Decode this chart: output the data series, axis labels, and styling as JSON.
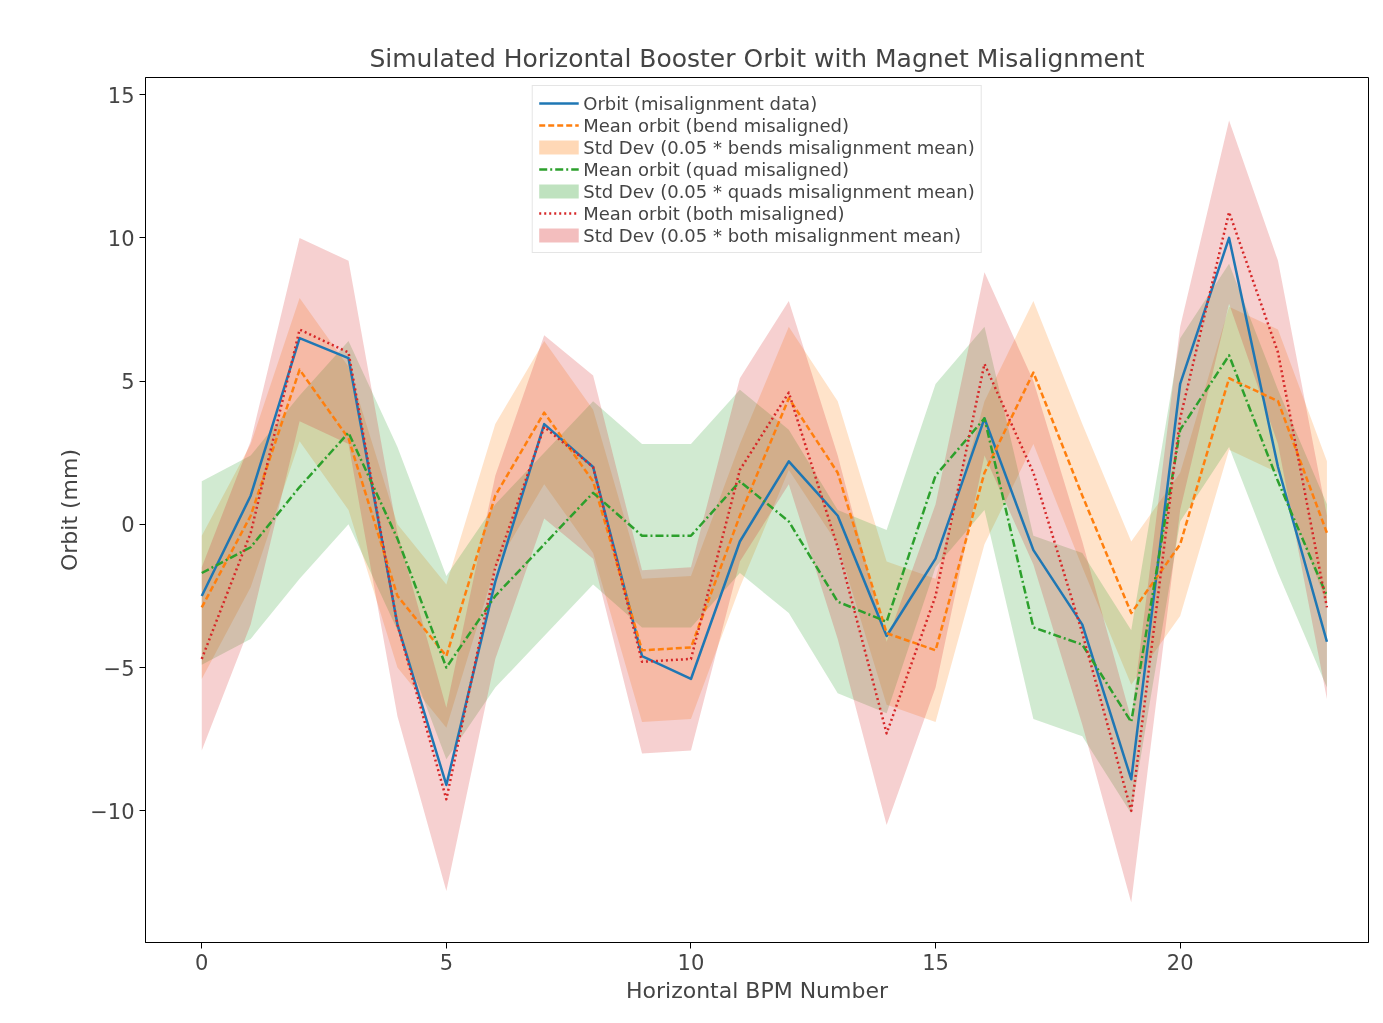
{
  "chart_data": {
    "type": "line",
    "title": "Simulated Horizontal Booster Orbit with Magnet Misalignment",
    "xlabel": "Horizontal BPM Number",
    "ylabel": "Orbit (mm)",
    "x": [
      0,
      1,
      2,
      3,
      4,
      5,
      6,
      7,
      8,
      9,
      10,
      11,
      12,
      13,
      14,
      15,
      16,
      17,
      18,
      19,
      20,
      21,
      22,
      23
    ],
    "series": [
      {
        "name": "Orbit (misalignment data)",
        "color": "#1f77b4",
        "line_style": "solid",
        "values": [
          -2.5,
          1.0,
          6.5,
          5.8,
          -3.5,
          -9.1,
          -2.0,
          3.5,
          2.0,
          -4.6,
          -5.4,
          -0.6,
          2.2,
          0.3,
          -3.9,
          -1.2,
          3.7,
          -0.9,
          -3.5,
          -8.9,
          4.9,
          10.0,
          2.0,
          -4.1
        ]
      },
      {
        "name": "Mean orbit (bend misaligned)",
        "color": "#ff7f0e",
        "line_style": "dashed",
        "values": [
          -2.9,
          0.3,
          5.4,
          3.0,
          -2.5,
          -4.6,
          1.0,
          3.9,
          1.5,
          -4.4,
          -4.3,
          0.3,
          4.4,
          1.8,
          -3.8,
          -4.4,
          1.8,
          5.3,
          1.0,
          -3.1,
          -0.7,
          5.1,
          4.3,
          -0.3
        ],
        "lower": [
          -5.4,
          -2.2,
          2.9,
          0.5,
          -5.0,
          -7.1,
          -1.5,
          1.4,
          -1.0,
          -6.9,
          -6.8,
          -2.2,
          1.9,
          -0.7,
          -6.3,
          -6.9,
          -0.7,
          2.8,
          -1.5,
          -5.6,
          -3.2,
          2.6,
          1.8,
          -2.8
        ],
        "upper": [
          -0.4,
          2.8,
          7.9,
          5.5,
          0.0,
          -2.1,
          3.5,
          6.4,
          4.0,
          -1.9,
          -1.8,
          2.8,
          6.9,
          4.3,
          -1.3,
          -1.9,
          4.3,
          7.8,
          3.5,
          -0.6,
          1.8,
          7.6,
          6.8,
          2.2
        ]
      },
      {
        "name": "Mean orbit (quad misaligned)",
        "color": "#2ca02c",
        "line_style": "dashdot",
        "values": [
          -1.7,
          -0.8,
          1.3,
          3.2,
          -0.5,
          -5.0,
          -2.5,
          -0.7,
          1.1,
          -0.4,
          -0.4,
          1.5,
          0.1,
          -2.7,
          -3.4,
          1.7,
          3.7,
          -3.6,
          -4.2,
          -6.9,
          3.3,
          5.9,
          1.5,
          -2.5
        ],
        "lower": [
          -4.9,
          -4.0,
          -1.9,
          0.0,
          -3.7,
          -8.2,
          -5.7,
          -3.9,
          -2.1,
          -3.6,
          -3.6,
          -1.7,
          -3.1,
          -5.9,
          -6.6,
          -1.5,
          0.5,
          -6.8,
          -7.4,
          -10.1,
          0.1,
          2.7,
          -1.7,
          -5.7
        ],
        "upper": [
          1.5,
          2.4,
          4.5,
          6.4,
          2.7,
          -1.8,
          0.7,
          2.5,
          4.3,
          2.8,
          2.8,
          4.7,
          3.3,
          0.5,
          -0.2,
          4.9,
          6.9,
          -0.4,
          -1.0,
          -3.7,
          6.5,
          9.1,
          4.7,
          0.7
        ]
      },
      {
        "name": "Mean orbit (both misaligned)",
        "color": "#d62728",
        "line_style": "dotted",
        "values": [
          -4.7,
          -0.3,
          6.8,
          6.0,
          -3.5,
          -9.6,
          -1.5,
          3.4,
          2.0,
          -4.8,
          -4.7,
          1.9,
          4.6,
          -0.8,
          -7.3,
          -2.5,
          5.6,
          1.8,
          -3.8,
          -10.0,
          3.7,
          10.9,
          6.0,
          -2.9
        ],
        "lower": [
          -7.9,
          -3.5,
          3.6,
          2.8,
          -6.7,
          -12.8,
          -4.7,
          0.2,
          -1.2,
          -8.0,
          -7.9,
          -1.3,
          1.4,
          -4.0,
          -10.5,
          -5.7,
          2.4,
          -1.4,
          -7.0,
          -13.2,
          0.5,
          7.7,
          2.8,
          -6.1
        ],
        "upper": [
          -1.5,
          2.9,
          10.0,
          9.2,
          -0.3,
          -6.4,
          1.7,
          6.6,
          5.2,
          -1.6,
          -1.5,
          5.1,
          7.8,
          2.4,
          -4.1,
          0.7,
          8.8,
          5.0,
          -0.6,
          -6.8,
          6.9,
          14.1,
          9.2,
          0.3
        ]
      }
    ],
    "annotations": [
      "Std Dev (0.05 * bends misalignment mean)",
      "Std Dev (0.05 * quads misalignment mean)",
      "Std Dev (0.05 * both misalignment mean)"
    ],
    "xlim": [
      -1.15,
      23.85
    ],
    "ylim": [
      -14.6,
      15.6
    ],
    "xticks": [
      0,
      5,
      10,
      15,
      20
    ],
    "yticks": [
      {
        "value": -10,
        "label": "−10"
      },
      {
        "value": -5,
        "label": "−5"
      },
      0,
      5,
      10,
      15
    ],
    "grid": false,
    "legend": "top"
  }
}
